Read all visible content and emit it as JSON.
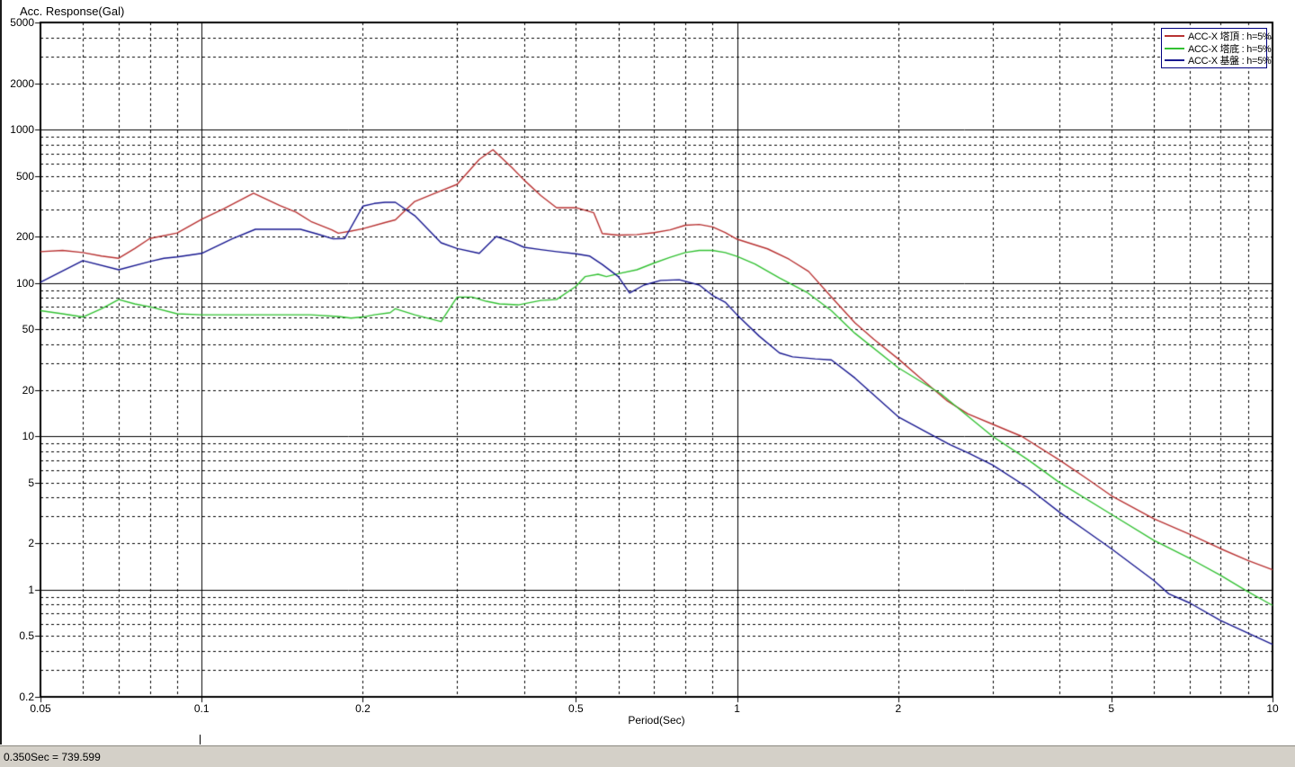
{
  "window": {
    "background": "#ffffff",
    "edge_color": "#1c1c1c"
  },
  "status_bar": {
    "text": "0.350Sec = 739.599",
    "background": "#d4d0c8"
  },
  "chart_data": {
    "type": "line",
    "title": "Acc. Response(Gal)",
    "xlabel": "Period(Sec)",
    "ylabel": "Acc. Response(Gal)",
    "x_scale": "log",
    "y_scale": "log",
    "xlim": [
      0.05,
      10
    ],
    "ylim": [
      0.2,
      5000
    ],
    "x_tick_labels": [
      "0.05",
      "0.1",
      "0.2",
      "0.5",
      "1",
      "2",
      "5",
      "10"
    ],
    "x_tick_values": [
      0.05,
      0.1,
      0.2,
      0.5,
      1,
      2,
      5,
      10
    ],
    "y_tick_labels": [
      "5000",
      "2000",
      "1000",
      "500",
      "200",
      "100",
      "50",
      "20",
      "10",
      "5",
      "2",
      "1",
      "0.5",
      "0.2"
    ],
    "y_tick_values": [
      5000,
      2000,
      1000,
      500,
      200,
      100,
      50,
      20,
      10,
      5,
      2,
      1,
      0.5,
      0.2
    ],
    "x_major_gridlines": [
      0.1,
      1
    ],
    "x_minor_gridlines": [
      0.06,
      0.07,
      0.08,
      0.09,
      0.2,
      0.3,
      0.4,
      0.5,
      0.6,
      0.7,
      0.8,
      0.9,
      2,
      3,
      4,
      5,
      6,
      7,
      8,
      9
    ],
    "y_major_gridlines": [
      1000,
      100,
      10,
      1
    ],
    "y_minor_gridlines": [
      4000,
      3000,
      2000,
      900,
      800,
      700,
      600,
      500,
      400,
      300,
      200,
      90,
      80,
      70,
      60,
      50,
      40,
      30,
      20,
      9,
      8,
      7,
      6,
      5,
      4,
      3,
      2,
      0.9,
      0.8,
      0.7,
      0.6,
      0.5,
      0.4,
      0.3
    ],
    "grid_style": {
      "major": "solid",
      "minor": "dashed",
      "color": "#000000"
    },
    "legend_position": "top-right",
    "legend_border_color": "#000080",
    "series": [
      {
        "name": "ACC-X 塔頂 : h=5%",
        "color": "#b83232",
        "points": [
          [
            0.05,
            160
          ],
          [
            0.055,
            163
          ],
          [
            0.06,
            158
          ],
          [
            0.065,
            150
          ],
          [
            0.07,
            145
          ],
          [
            0.075,
            168
          ],
          [
            0.08,
            195
          ],
          [
            0.09,
            212
          ],
          [
            0.1,
            260
          ],
          [
            0.11,
            305
          ],
          [
            0.125,
            385
          ],
          [
            0.14,
            320
          ],
          [
            0.15,
            290
          ],
          [
            0.16,
            252
          ],
          [
            0.175,
            222
          ],
          [
            0.18,
            211
          ],
          [
            0.19,
            218
          ],
          [
            0.2,
            226
          ],
          [
            0.22,
            248
          ],
          [
            0.23,
            258
          ],
          [
            0.25,
            340
          ],
          [
            0.28,
            400
          ],
          [
            0.3,
            440
          ],
          [
            0.33,
            640
          ],
          [
            0.35,
            739.6
          ],
          [
            0.38,
            565
          ],
          [
            0.4,
            470
          ],
          [
            0.43,
            372
          ],
          [
            0.46,
            310
          ],
          [
            0.5,
            310
          ],
          [
            0.54,
            287
          ],
          [
            0.56,
            210
          ],
          [
            0.6,
            205
          ],
          [
            0.65,
            207
          ],
          [
            0.7,
            213
          ],
          [
            0.75,
            222
          ],
          [
            0.8,
            238
          ],
          [
            0.85,
            241
          ],
          [
            0.9,
            232
          ],
          [
            0.95,
            213
          ],
          [
            1.0,
            193
          ],
          [
            1.14,
            167
          ],
          [
            1.25,
            143
          ],
          [
            1.36,
            119
          ],
          [
            1.5,
            81
          ],
          [
            1.66,
            55
          ],
          [
            1.8,
            43
          ],
          [
            2.0,
            32
          ],
          [
            2.2,
            24
          ],
          [
            2.47,
            17
          ],
          [
            2.7,
            14
          ],
          [
            3.0,
            12
          ],
          [
            3.4,
            10
          ],
          [
            4.0,
            7
          ],
          [
            4.5,
            5.3
          ],
          [
            5.0,
            4.1
          ],
          [
            6.0,
            2.9
          ],
          [
            7.0,
            2.3
          ],
          [
            8.0,
            1.85
          ],
          [
            9.0,
            1.55
          ],
          [
            10,
            1.35
          ]
        ]
      },
      {
        "name": "ACC-X 塔底 : h=5%",
        "color": "#33c133",
        "points": [
          [
            0.05,
            66
          ],
          [
            0.055,
            63
          ],
          [
            0.06,
            60
          ],
          [
            0.065,
            68
          ],
          [
            0.07,
            78
          ],
          [
            0.075,
            73
          ],
          [
            0.08,
            70
          ],
          [
            0.09,
            63
          ],
          [
            0.1,
            62
          ],
          [
            0.12,
            62
          ],
          [
            0.14,
            62
          ],
          [
            0.16,
            62
          ],
          [
            0.18,
            60.5
          ],
          [
            0.19,
            59
          ],
          [
            0.2,
            60
          ],
          [
            0.21,
            62
          ],
          [
            0.225,
            64
          ],
          [
            0.23,
            68
          ],
          [
            0.25,
            62
          ],
          [
            0.28,
            56
          ],
          [
            0.3,
            81
          ],
          [
            0.32,
            81
          ],
          [
            0.34,
            76
          ],
          [
            0.36,
            73
          ],
          [
            0.39,
            72
          ],
          [
            0.43,
            77
          ],
          [
            0.46,
            78
          ],
          [
            0.5,
            95
          ],
          [
            0.52,
            110
          ],
          [
            0.55,
            114
          ],
          [
            0.57,
            110
          ],
          [
            0.6,
            115
          ],
          [
            0.65,
            122
          ],
          [
            0.7,
            135
          ],
          [
            0.75,
            147
          ],
          [
            0.8,
            158
          ],
          [
            0.85,
            163
          ],
          [
            0.9,
            163
          ],
          [
            0.95,
            158
          ],
          [
            1.0,
            149
          ],
          [
            1.08,
            133
          ],
          [
            1.2,
            108
          ],
          [
            1.35,
            87
          ],
          [
            1.5,
            66
          ],
          [
            1.66,
            47
          ],
          [
            2.0,
            28
          ],
          [
            2.4,
            19
          ],
          [
            2.7,
            13.5
          ],
          [
            3.0,
            10
          ],
          [
            3.5,
            7
          ],
          [
            4.0,
            5
          ],
          [
            5.0,
            3.1
          ],
          [
            6.0,
            2.1
          ],
          [
            7.0,
            1.6
          ],
          [
            8.0,
            1.24
          ],
          [
            9.0,
            0.97
          ],
          [
            10,
            0.79
          ]
        ]
      },
      {
        "name": "ACC-X 基盤 : h=5%",
        "color": "#181890",
        "points": [
          [
            0.05,
            101
          ],
          [
            0.06,
            140
          ],
          [
            0.07,
            122
          ],
          [
            0.08,
            138
          ],
          [
            0.085,
            145
          ],
          [
            0.09,
            148
          ],
          [
            0.1,
            156
          ],
          [
            0.114,
            194
          ],
          [
            0.126,
            224
          ],
          [
            0.14,
            224
          ],
          [
            0.153,
            224
          ],
          [
            0.165,
            208
          ],
          [
            0.176,
            194
          ],
          [
            0.185,
            195
          ],
          [
            0.2,
            317
          ],
          [
            0.21,
            330
          ],
          [
            0.22,
            336
          ],
          [
            0.23,
            336
          ],
          [
            0.25,
            275
          ],
          [
            0.28,
            183
          ],
          [
            0.3,
            168
          ],
          [
            0.33,
            156
          ],
          [
            0.355,
            201
          ],
          [
            0.38,
            185
          ],
          [
            0.4,
            171
          ],
          [
            0.43,
            165
          ],
          [
            0.46,
            160
          ],
          [
            0.5,
            155
          ],
          [
            0.53,
            150
          ],
          [
            0.56,
            132
          ],
          [
            0.6,
            110
          ],
          [
            0.63,
            86
          ],
          [
            0.67,
            97
          ],
          [
            0.72,
            104
          ],
          [
            0.78,
            105
          ],
          [
            0.85,
            97
          ],
          [
            0.9,
            83
          ],
          [
            0.95,
            75
          ],
          [
            1.0,
            62
          ],
          [
            1.1,
            45
          ],
          [
            1.2,
            35
          ],
          [
            1.27,
            33
          ],
          [
            1.4,
            32
          ],
          [
            1.5,
            31.5
          ],
          [
            1.66,
            24
          ],
          [
            2.0,
            13.4
          ],
          [
            2.3,
            10.3
          ],
          [
            2.5,
            8.8
          ],
          [
            2.7,
            7.8
          ],
          [
            3.0,
            6.5
          ],
          [
            3.5,
            4.6
          ],
          [
            4.0,
            3.2
          ],
          [
            4.5,
            2.4
          ],
          [
            5.0,
            1.85
          ],
          [
            6.0,
            1.15
          ],
          [
            6.4,
            0.94
          ],
          [
            7.0,
            0.82
          ],
          [
            8.0,
            0.63
          ],
          [
            9.0,
            0.52
          ],
          [
            10,
            0.44
          ]
        ]
      }
    ]
  }
}
